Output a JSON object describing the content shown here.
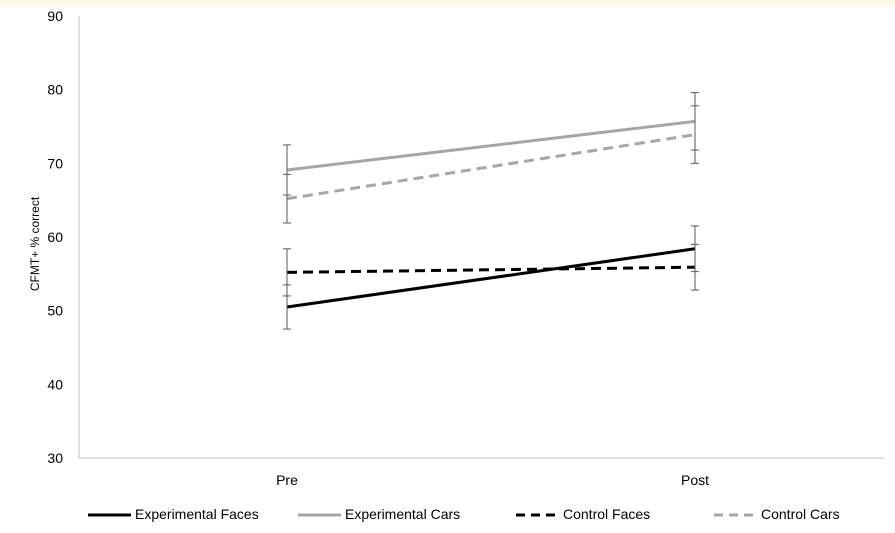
{
  "chart_data": {
    "type": "line",
    "title": "",
    "xlabel": "",
    "ylabel": "CFMT+ % correct",
    "categories": [
      "Pre",
      "Post"
    ],
    "ylim": [
      30,
      90
    ],
    "yticks": [
      "30",
      "40",
      "50",
      "60",
      "70",
      "80",
      "90"
    ],
    "grid": false,
    "legend_position": "bottom",
    "error_bars": true,
    "series": [
      {
        "name": "Experimental Faces",
        "values": [
          50.5,
          58.4
        ],
        "errors": [
          3.0,
          3.1
        ],
        "color": "#000000",
        "dash": "solid"
      },
      {
        "name": "Experimental Cars",
        "values": [
          69.1,
          75.7
        ],
        "errors": [
          3.4,
          3.9
        ],
        "color": "#a6a6a6",
        "dash": "solid"
      },
      {
        "name": "Control Faces",
        "values": [
          55.2,
          55.9
        ],
        "errors": [
          3.2,
          3.1
        ],
        "color": "#000000",
        "dash": "dashed"
      },
      {
        "name": "Control Cars",
        "values": [
          65.2,
          73.9
        ],
        "errors": [
          3.3,
          3.9
        ],
        "color": "#a6a6a6",
        "dash": "dashed"
      }
    ]
  }
}
